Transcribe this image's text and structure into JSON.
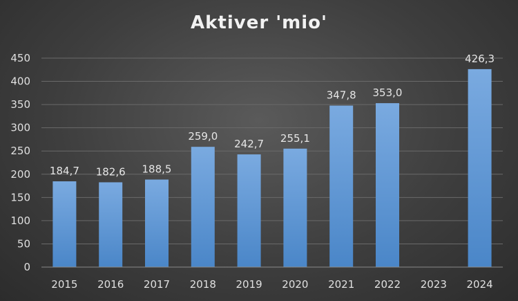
{
  "chart_data": {
    "type": "bar",
    "title": "Aktiver 'mio'",
    "xlabel": "",
    "ylabel": "",
    "categories": [
      "2015",
      "2016",
      "2017",
      "2018",
      "2019",
      "2020",
      "2021",
      "2022",
      "2023",
      "2024"
    ],
    "values": [
      184.7,
      182.6,
      188.5,
      259.0,
      242.7,
      255.1,
      347.8,
      353.0,
      null,
      426.3
    ],
    "data_labels": [
      "184,7",
      "182,6",
      "188,5",
      "259,0",
      "242,7",
      "255,1",
      "347,8",
      "353,0",
      "",
      "426,3"
    ],
    "ylim": [
      0,
      450
    ],
    "yticks": [
      0,
      50,
      100,
      150,
      200,
      250,
      300,
      350,
      400,
      450
    ],
    "ytick_labels": [
      "0",
      "50",
      "100",
      "150",
      "200",
      "250",
      "300",
      "350",
      "400",
      "450"
    ],
    "grid": true,
    "legend": "none",
    "colors": {
      "bar_top": "#7aaae0",
      "bar_bottom": "#4a86c8",
      "grid": "#6a6a6a",
      "axis": "#8a8a8a",
      "text": "#e0e0e0",
      "title": "#f2f2f2"
    }
  }
}
